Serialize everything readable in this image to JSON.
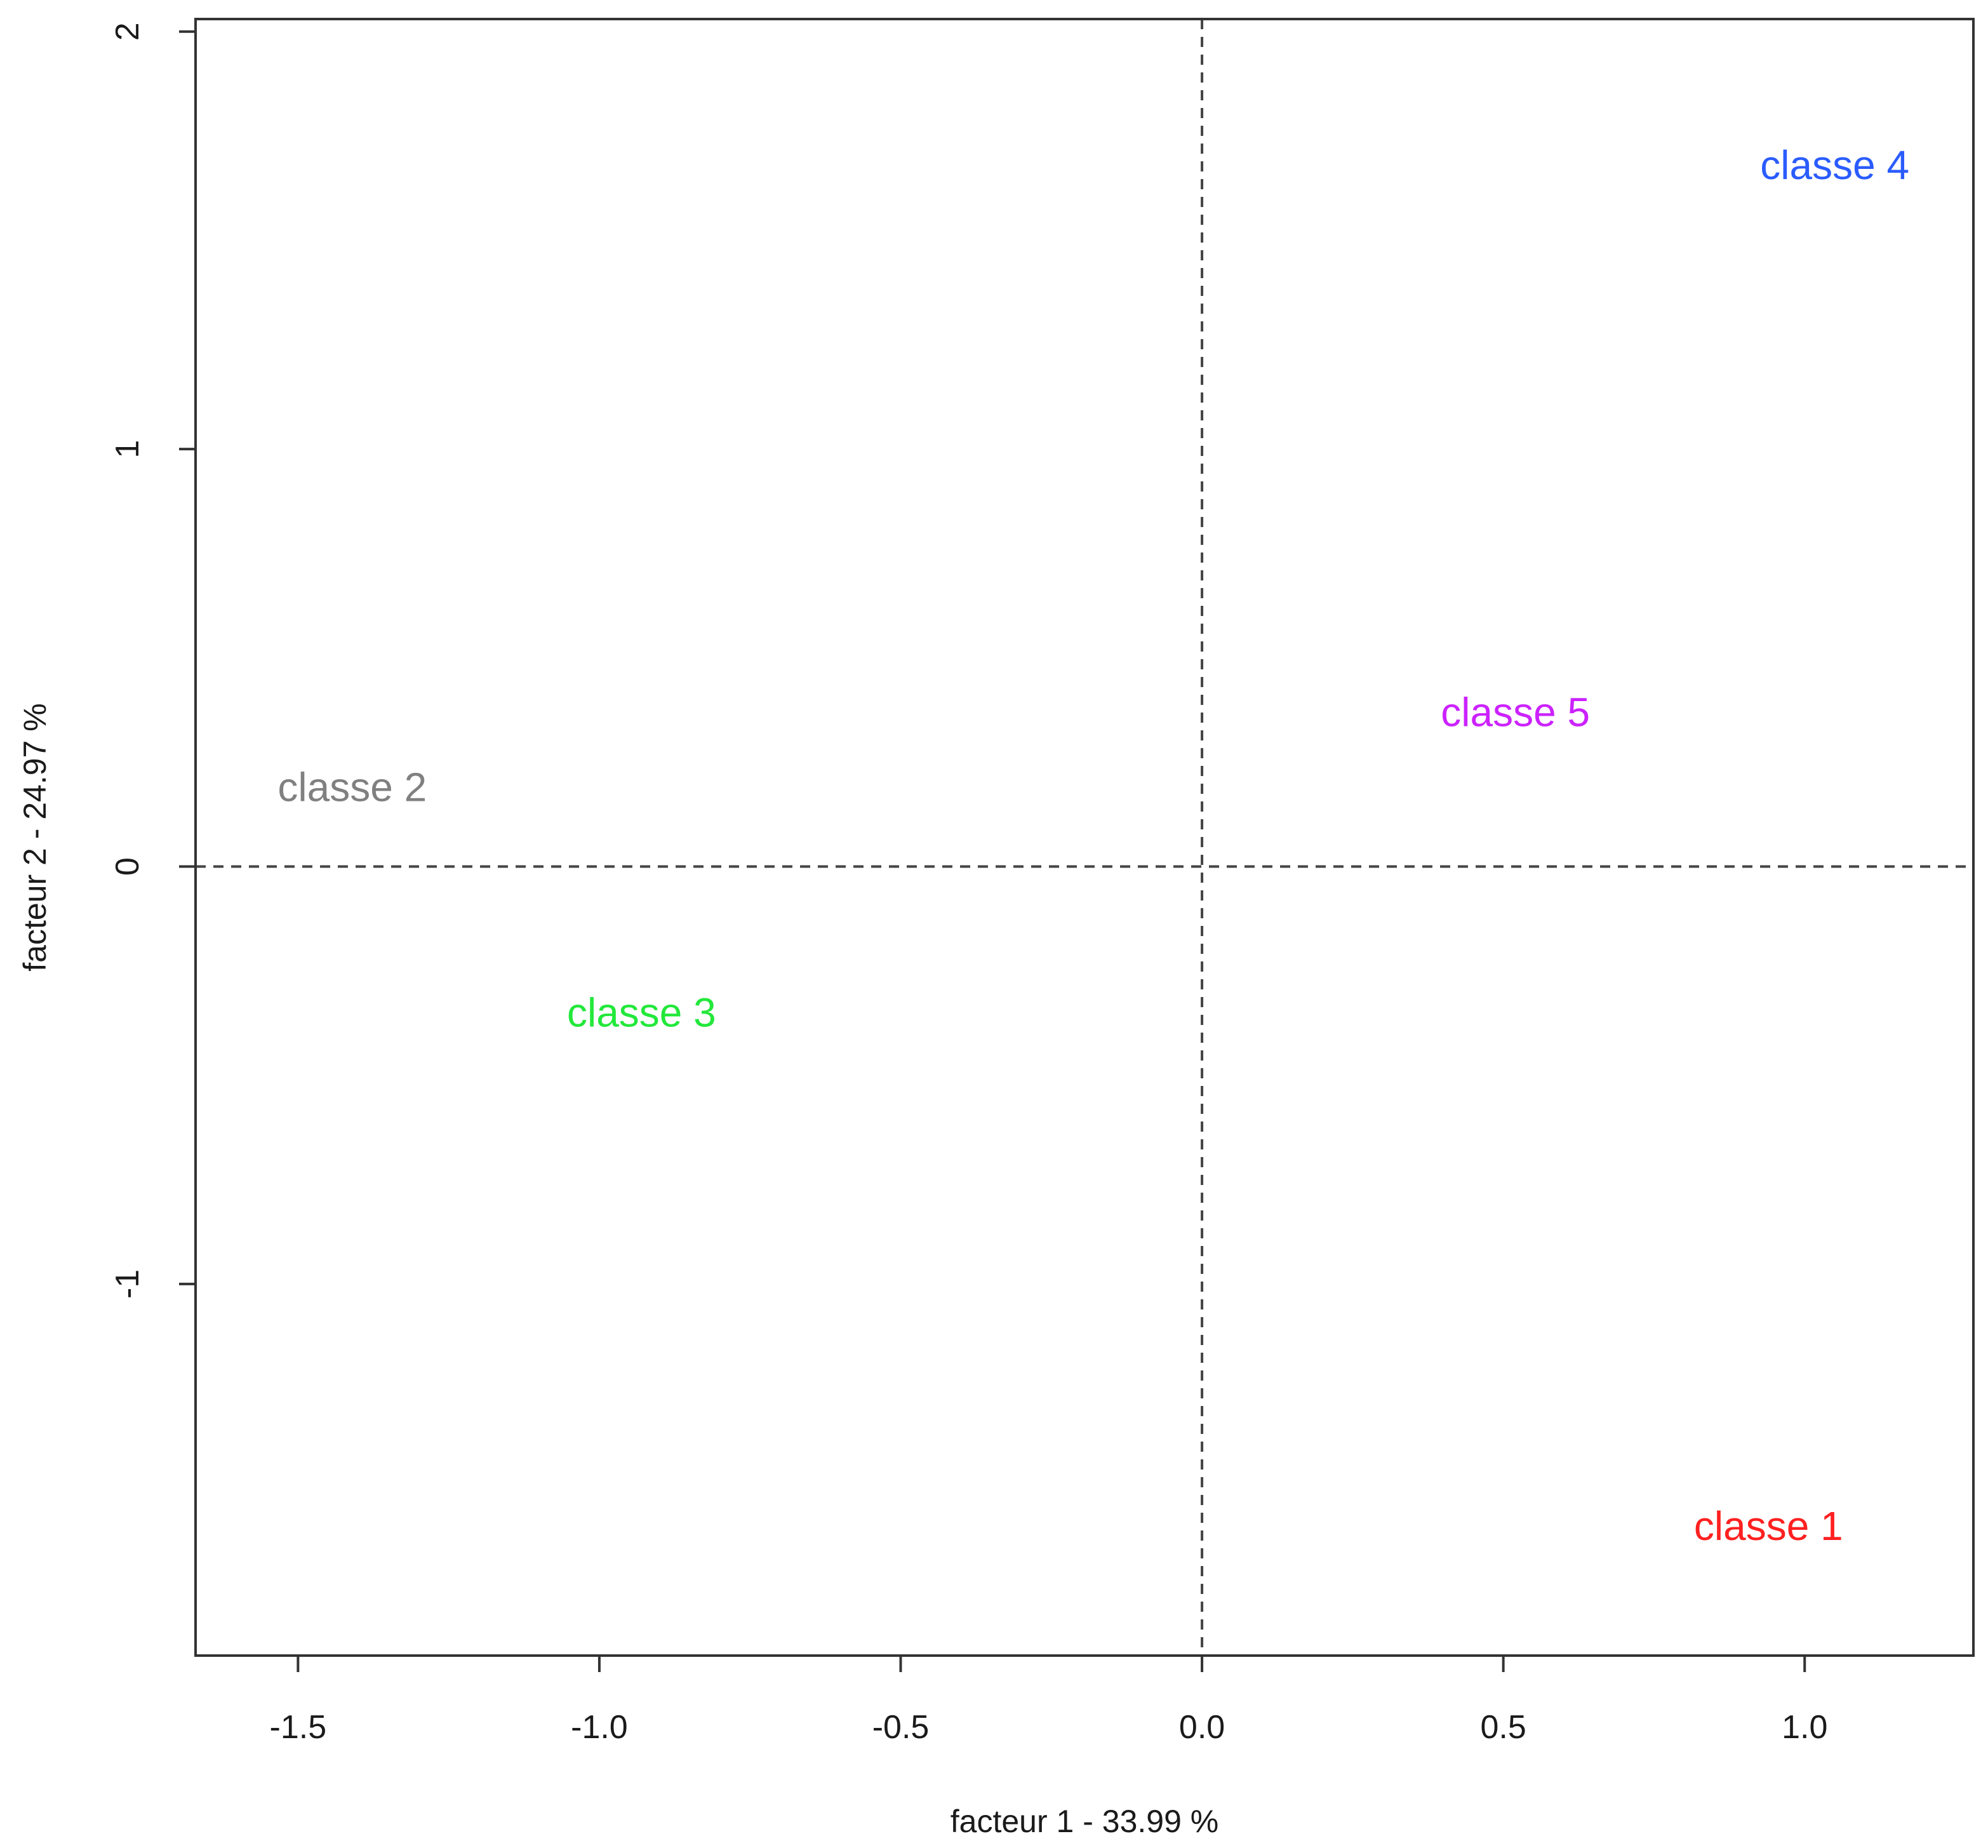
{
  "chart_data": {
    "type": "scatter",
    "title": "",
    "xlabel": "facteur  1  - 33.99 %",
    "ylabel": "facteur  2  - 24.97 %",
    "xlim": [
      -1.67,
      1.28
    ],
    "ylim": [
      -1.89,
      2.03
    ],
    "xticks": [
      -1.5,
      -1.0,
      -0.5,
      0.0,
      0.5,
      1.0
    ],
    "xtick_labels": [
      "-1.5",
      "-1.0",
      "-0.5",
      "0.0",
      "0.5",
      "1.0"
    ],
    "yticks": [
      -1,
      0,
      1,
      2
    ],
    "ytick_labels": [
      "-1",
      "0",
      "1",
      "2"
    ],
    "reference_lines": {
      "x": 0,
      "y": 0,
      "style": "dashed"
    },
    "grid": false,
    "legend": "none",
    "points": [
      {
        "label": "classe 1",
        "x": 0.94,
        "y": -1.58,
        "color": "#ff2020"
      },
      {
        "label": "classe 2",
        "x": -1.41,
        "y": 0.19,
        "color": "#808080"
      },
      {
        "label": "classe 3",
        "x": -0.93,
        "y": -0.35,
        "color": "#22e83a"
      },
      {
        "label": "classe 4",
        "x": 1.05,
        "y": 1.68,
        "color": "#2a5cff"
      },
      {
        "label": "classe 5",
        "x": 0.52,
        "y": 0.37,
        "color": "#cc22ff"
      }
    ]
  }
}
